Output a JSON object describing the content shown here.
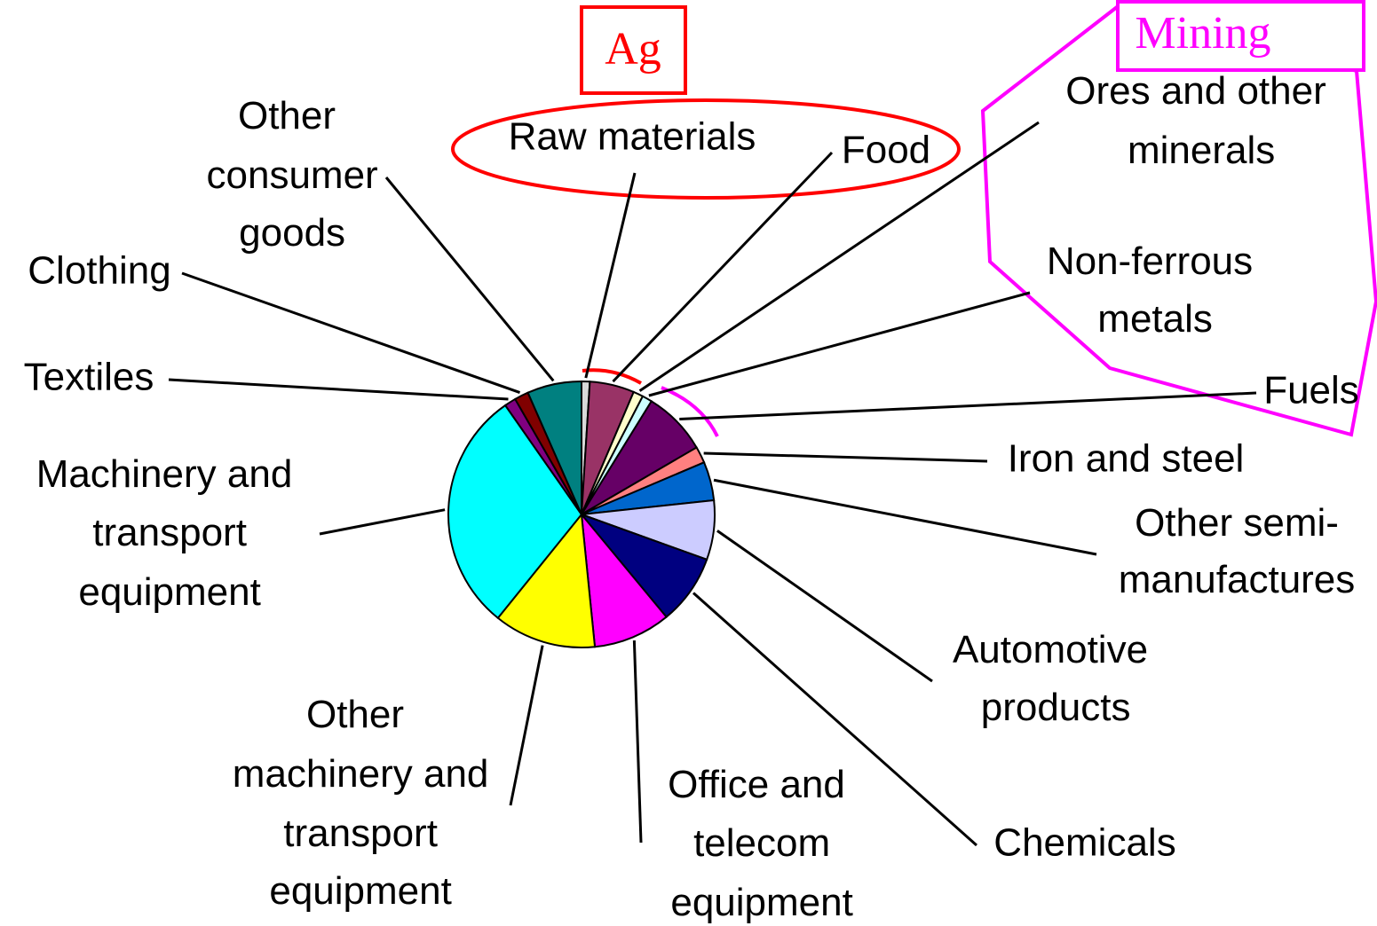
{
  "chart_data": {
    "type": "pie",
    "categories": [
      "Raw materials",
      "Food",
      "Ores and other minerals",
      "Non-ferrous metals",
      "Fuels",
      "Iron and steel",
      "Other semi-manufactures",
      "Automotive products",
      "Chemicals",
      "Office and telecom equipment",
      "Other machinery and transport equipment",
      "Machinery and transport equipment",
      "Textiles",
      "Clothing",
      "Other consumer goods"
    ],
    "values": [
      1,
      5.4,
      1.2,
      1.2,
      7.8,
      2,
      4.7,
      7.2,
      8.5,
      9.4,
      12.4,
      29.5,
      1.4,
      1.7,
      6.6
    ],
    "colors": [
      "#d9d9d9",
      "#993366",
      "#ffffcc",
      "#ccffff",
      "#660066",
      "#ff8080",
      "#0066cc",
      "#ccccff",
      "#000080",
      "#ff00ff",
      "#ffff00",
      "#00ffff",
      "#800080",
      "#800000",
      "#008080"
    ],
    "annotations": [
      "Ag",
      "Mining"
    ]
  }
}
